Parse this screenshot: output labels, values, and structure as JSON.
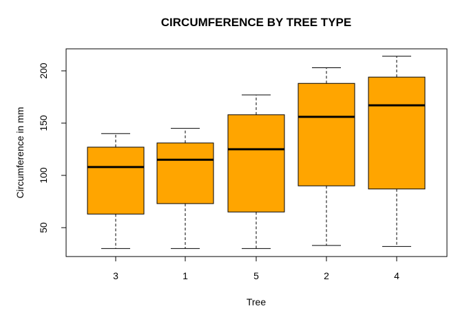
{
  "chart_data": {
    "type": "boxplot",
    "title": "CIRCUMFERENCE BY TREE TYPE",
    "xlabel": "Tree",
    "ylabel": "Circumference in mm",
    "ylim": [
      20,
      220
    ],
    "yticks": [
      50,
      100,
      150,
      200
    ],
    "categories": [
      "3",
      "1",
      "5",
      "2",
      "4"
    ],
    "boxes": [
      {
        "min": 30,
        "q1": 63,
        "median": 108,
        "q3": 127,
        "max": 140
      },
      {
        "min": 30,
        "q1": 73,
        "median": 115,
        "q3": 131,
        "max": 145
      },
      {
        "min": 30,
        "q1": 65,
        "median": 125,
        "q3": 158,
        "max": 177
      },
      {
        "min": 33,
        "q1": 90,
        "median": 156,
        "q3": 188,
        "max": 203
      },
      {
        "min": 32,
        "q1": 87,
        "median": 167,
        "q3": 194,
        "max": 214
      }
    ],
    "box_color": "#FFA500",
    "grid": false,
    "legend": "none"
  }
}
